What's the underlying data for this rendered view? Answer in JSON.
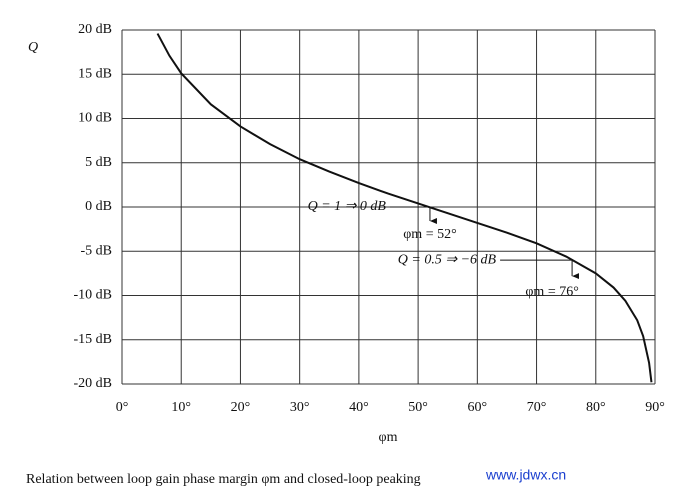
{
  "chart_data": {
    "type": "line",
    "x_label": "φm",
    "y_label": "Q",
    "caption": "Relation between loop gain phase margin φm and closed-loop peaking",
    "watermark": "www.jdwx.cn",
    "x": [
      6,
      8,
      10,
      15,
      20,
      25,
      30,
      35,
      40,
      45,
      50,
      55,
      60,
      65,
      70,
      75,
      80,
      83,
      85,
      87,
      88,
      89,
      89.4
    ],
    "series": [
      {
        "name": "Q",
        "color": "#111111",
        "values": [
          19.6,
          17.1,
          15.1,
          11.6,
          9.1,
          7.1,
          5.4,
          4.0,
          2.7,
          1.5,
          0.4,
          -0.7,
          -1.8,
          -2.9,
          -4.1,
          -5.6,
          -7.5,
          -9.1,
          -10.6,
          -12.8,
          -14.6,
          -17.6,
          -19.8
        ]
      }
    ],
    "xlim": [
      0,
      90
    ],
    "ylim": [
      -20,
      20
    ],
    "xticks": [
      {
        "value": 0,
        "label": "0°"
      },
      {
        "value": 10,
        "label": "10°"
      },
      {
        "value": 20,
        "label": "20°"
      },
      {
        "value": 30,
        "label": "30°"
      },
      {
        "value": 40,
        "label": "40°"
      },
      {
        "value": 50,
        "label": "50°"
      },
      {
        "value": 60,
        "label": "60°"
      },
      {
        "value": 70,
        "label": "70°"
      },
      {
        "value": 80,
        "label": "80°"
      },
      {
        "value": 90,
        "label": "90°"
      }
    ],
    "yticks": [
      {
        "value": 20,
        "label": "20 dB"
      },
      {
        "value": 15,
        "label": "15 dB"
      },
      {
        "value": 10,
        "label": "10 dB"
      },
      {
        "value": 5,
        "label": "5 dB"
      },
      {
        "value": 0,
        "label": "0 dB"
      },
      {
        "value": -5,
        "label": "-5 dB"
      },
      {
        "value": -10,
        "label": "-10 dB"
      },
      {
        "value": -15,
        "label": "-15 dB"
      },
      {
        "value": -20,
        "label": "-20 dB"
      }
    ],
    "grid": true,
    "annotations": [
      {
        "text": "Q = 1 ⇒ 0 dB",
        "x": 52,
        "y": 0
      },
      {
        "text": "φm = 52°",
        "x": 52,
        "y": 0
      },
      {
        "text": "Q = 0.5 ⇒ −6 dB",
        "x": 76,
        "y": -6
      },
      {
        "text": "φm = 76°",
        "x": 76,
        "y": -6
      }
    ]
  }
}
